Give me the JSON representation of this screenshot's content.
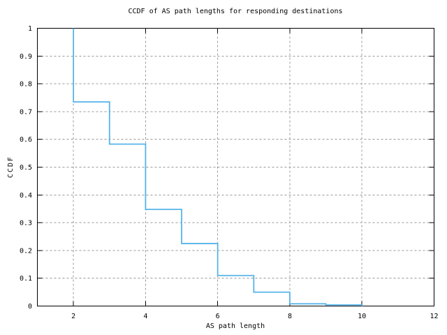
{
  "colors": {
    "line": "#56B4E9",
    "grid": "#999999",
    "axis": "#000000",
    "background": "#ffffff"
  },
  "chart_data": {
    "type": "line",
    "style": "step",
    "title": "CCDF of AS path lengths for responding destinations",
    "xlabel": "AS path length",
    "ylabel": "CCDF",
    "xlim": [
      1,
      12
    ],
    "ylim": [
      0,
      1
    ],
    "x_ticks": [
      2,
      4,
      6,
      8,
      10,
      12
    ],
    "x_tick_labels": [
      "2",
      "4",
      "6",
      "8",
      "10",
      "12"
    ],
    "y_ticks": [
      0,
      0.1,
      0.2,
      0.3,
      0.4,
      0.5,
      0.6,
      0.7,
      0.8,
      0.9,
      1
    ],
    "y_tick_labels": [
      "0",
      "0.1",
      "0.2",
      "0.3",
      "0.4",
      "0.5",
      "0.6",
      "0.7",
      "0.8",
      "0.9",
      "1"
    ],
    "grid": true,
    "legend": "none",
    "series": [
      {
        "name": "ccdf",
        "points": [
          [
            2,
            1.0
          ],
          [
            2,
            0.735
          ],
          [
            3,
            0.735
          ],
          [
            3,
            0.583
          ],
          [
            4,
            0.583
          ],
          [
            4,
            0.348
          ],
          [
            5,
            0.348
          ],
          [
            5,
            0.225
          ],
          [
            6,
            0.225
          ],
          [
            6,
            0.11
          ],
          [
            7,
            0.11
          ],
          [
            7,
            0.05
          ],
          [
            8,
            0.05
          ],
          [
            8,
            0.008
          ],
          [
            9,
            0.008
          ],
          [
            9,
            0.004
          ],
          [
            10,
            0.004
          ],
          [
            10,
            0.0
          ]
        ]
      }
    ]
  }
}
